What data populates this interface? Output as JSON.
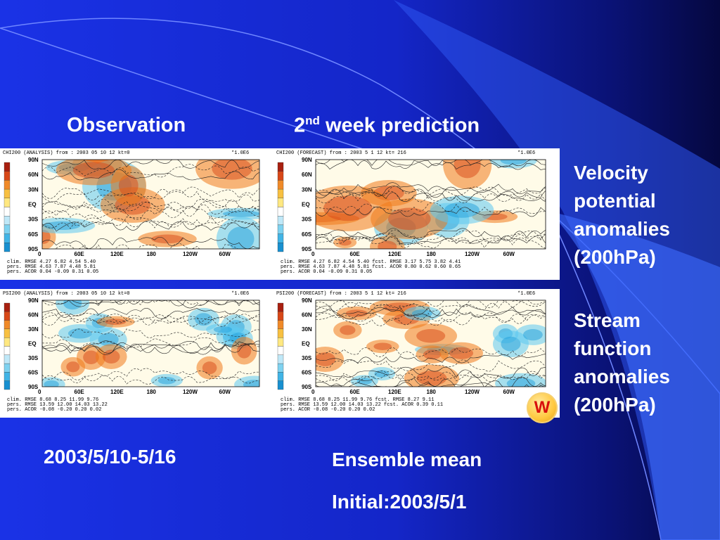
{
  "header": {
    "observation": "Observation",
    "prediction_num": "2",
    "prediction_sup": "nd",
    "prediction_rest": " week prediction"
  },
  "side": {
    "vp": [
      "Velocity",
      "potential",
      "anomalies",
      "(200hPa)"
    ],
    "sf": [
      "Stream",
      "function",
      "anomalies",
      "(200hPa)"
    ]
  },
  "bottom": {
    "obs_period": "2003/5/10-5/16",
    "ensemble": "Ensemble mean",
    "initial": "Initial:2003/5/1"
  },
  "badge": "W",
  "panels": {
    "chi_obs": {
      "title": "CHI200 (ANALYSIS)   from : 2003 05 10 12 kt=0",
      "scale": "*1.0E6"
    },
    "chi_fc": {
      "title": "CHI200 (FORECAST)  from : 2003 5 1 12 kt= 216",
      "scale": "*1.0E6"
    },
    "psi_obs": {
      "title": "PSI200 (ANALYSIS)   from : 2003 05 10 12 kt=0",
      "scale": "*1.0E6"
    },
    "psi_fc": {
      "title": "PSI200 (FORECAST)  from : 2003 5 1 12 kt= 216",
      "scale": "*1.0E6"
    }
  },
  "lat_labels": [
    "90N",
    "60N",
    "30N",
    "EQ",
    "30S",
    "60S",
    "90S"
  ],
  "lon_labels": [
    "0",
    "60E",
    "120E",
    "180",
    "120W",
    "60W"
  ],
  "stats": {
    "chi_obs": [
      "clim. RMSE  4.27  6.82  4.54  5.40",
      "pers. RMSE  4.63  7.87  4.48  5.81",
      "pers. ACOR  0.04 -0.09  0.31  0.05"
    ],
    "chi_fc": [
      "clim. RMSE  4.27  6.82  4.54  5.40   fcst. RMSE  3.17  5.75  3.82  4.41",
      "pers. RMSE  4.63  7.87  4.48  5.81   fcst. ACOR  0.80  0.62  0.60  0.65",
      "pers. ACOR  0.04 -0.09  0.31  0.05"
    ],
    "psi_obs": [
      "clim. RMSE  8.68  8.25 11.99  9.76",
      "pers. RMSE 13.59 12.00 14.03 13.22",
      "pers. ACOR -0.08 -0.20  0.20  0.02"
    ],
    "psi_fc": [
      "clim. RMSE  8.68  8.25 11.99  9.76   fcst. RMSE  8.27  9.11",
      "pers. RMSE 13.59 12.00 14.03 13.22   fcst. ACOR  0.39  0.11",
      "pers. ACOR -0.08 -0.20  0.20  0.02"
    ]
  },
  "colors": {
    "warm": "#f07a1a",
    "cool": "#5cc8f0",
    "text": "#ffffff",
    "badge_text": "#d8100c"
  }
}
